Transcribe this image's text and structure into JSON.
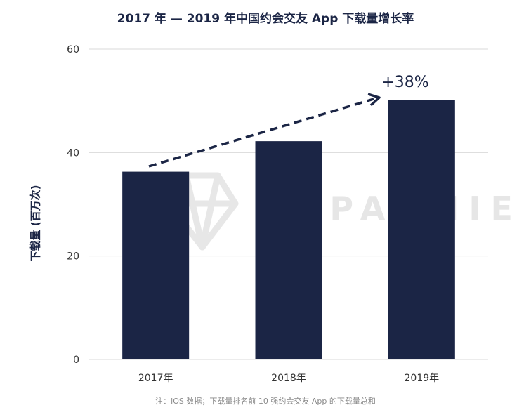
{
  "chart_data": {
    "type": "bar",
    "title": "2017 年 — 2019 年中国约会交友 App 下载量增长率",
    "ylabel": "下载量 (百万次)",
    "xlabel": "",
    "categories": [
      "2017年",
      "2018年",
      "2019年"
    ],
    "values": [
      36.3,
      42.2,
      50.2
    ],
    "ylim": [
      0,
      60
    ],
    "yticks": [
      0,
      20,
      40,
      60
    ],
    "grid": true,
    "bar_color": "#1b2545",
    "annotation": "+38%",
    "note": "注：iOS 数据；下载量排名前 10 强约会交友 App 的下载量总和"
  },
  "watermark": {
    "text": "APPANNIE",
    "icon": "diamond-logo-icon"
  }
}
